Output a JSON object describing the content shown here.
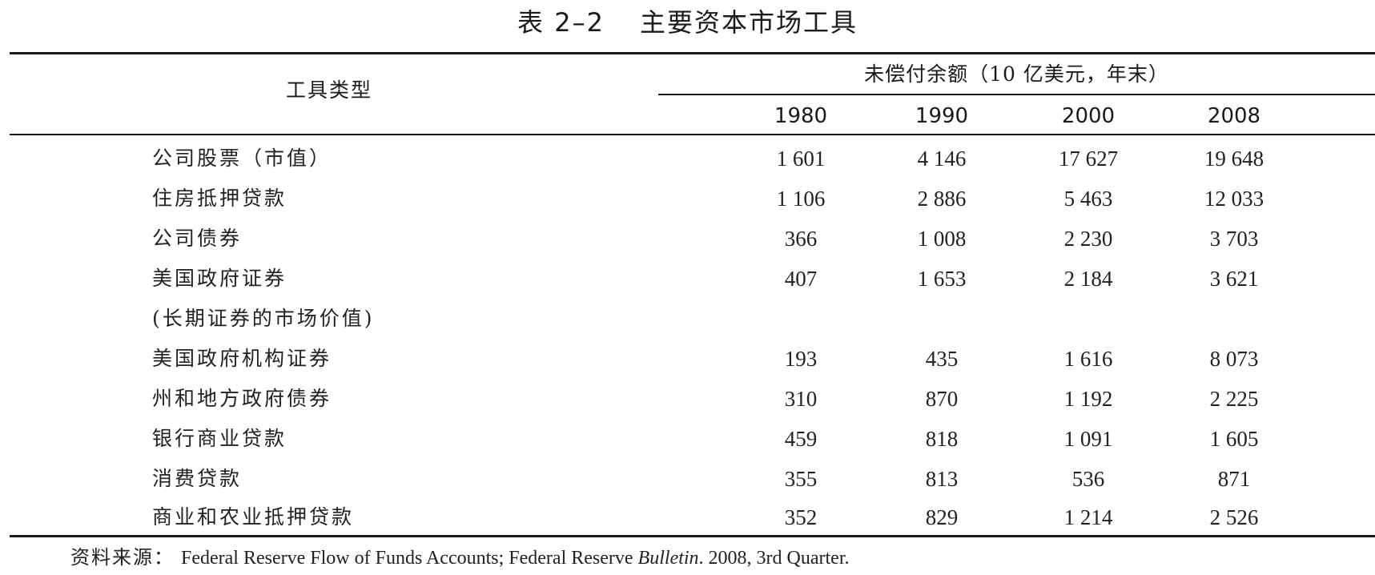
{
  "table": {
    "title_number": "表 2–2",
    "title_text": "主要资本市场工具",
    "type_header": "工具类型",
    "unit_header": "未偿付余额（10 亿美元，年末）",
    "years": [
      "1980",
      "1990",
      "2000",
      "2008"
    ],
    "rows": [
      {
        "label": "公司股票（市值）",
        "values": [
          "1 601",
          "4 146",
          "17 627",
          "19 648"
        ]
      },
      {
        "label": "住房抵押贷款",
        "values": [
          "1 106",
          "2 886",
          "5 463",
          "12 033"
        ]
      },
      {
        "label": "公司债券",
        "values": [
          "366",
          "1 008",
          "2 230",
          "3 703"
        ]
      },
      {
        "label": "美国政府证券",
        "values": [
          "407",
          "1 653",
          "2 184",
          "3 621"
        ]
      },
      {
        "label": "(长期证券的市场价值)",
        "values": [
          "",
          "",
          "",
          ""
        ]
      },
      {
        "label": "美国政府机构证券",
        "values": [
          "193",
          "435",
          "1 616",
          "8 073"
        ]
      },
      {
        "label": "州和地方政府债券",
        "values": [
          "310",
          "870",
          "1 192",
          "2 225"
        ]
      },
      {
        "label": "银行商业贷款",
        "values": [
          "459",
          "818",
          "1 091",
          "1 605"
        ]
      },
      {
        "label": "消费贷款",
        "values": [
          "355",
          "813",
          "536",
          "871"
        ]
      },
      {
        "label": "商业和农业抵押贷款",
        "values": [
          "352",
          "829",
          "1 214",
          "2 526"
        ]
      }
    ]
  },
  "source": {
    "label": "资料来源：",
    "text_before": "Federal Reserve Flow of Funds Accounts; Federal Reserve ",
    "italic": "Bulletin",
    "text_after": ". 2008, 3rd Quarter."
  }
}
